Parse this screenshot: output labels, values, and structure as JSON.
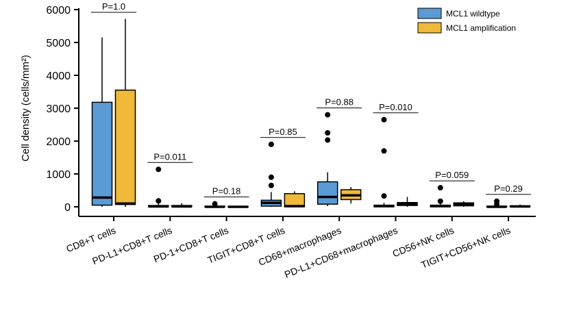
{
  "chart_data": {
    "type": "box",
    "ylabel": "Cell density (cells/mm²)",
    "ylim": [
      0,
      6000
    ],
    "yticks": [
      0,
      1000,
      2000,
      3000,
      4000,
      5000,
      6000
    ],
    "legend": {
      "placement": "top-right",
      "entries": [
        {
          "name": "MCL1 wildtype",
          "color": "#5b9bd5"
        },
        {
          "name": "MCL1 amplification",
          "color": "#f0b93a"
        }
      ]
    },
    "categories": [
      "CD8+T cells",
      "PD-L1+CD8+T cells",
      "PD-1+CD8+T cells",
      "TIGIT+CD8+T cells",
      "CD68+macrophages",
      "PD-L1+CD68+macrophages",
      "CD56+NK cells",
      "TIGIT+CD56+NK cells"
    ],
    "p_values": [
      "P=1.0",
      "P=0.011",
      "P=0.18",
      "P=0.85",
      "P=0.88",
      "P=0.010",
      "P=0.059",
      "P=0.29"
    ],
    "series": [
      {
        "name": "MCL1 wildtype",
        "color": "#5b9bd5",
        "boxes": [
          {
            "min": 0,
            "q1": 50,
            "median": 280,
            "q3": 3180,
            "max": 5150,
            "outliers": []
          },
          {
            "min": 0,
            "q1": 0,
            "median": 10,
            "q3": 40,
            "max": 100,
            "outliers": [
              1140,
              180
            ]
          },
          {
            "min": 0,
            "q1": 0,
            "median": 0,
            "q3": 20,
            "max": 60,
            "outliers": [
              90
            ]
          },
          {
            "min": 0,
            "q1": 20,
            "median": 120,
            "q3": 200,
            "max": 450,
            "outliers": [
              1900,
              900,
              650
            ]
          },
          {
            "min": 20,
            "q1": 80,
            "median": 300,
            "q3": 760,
            "max": 1050,
            "outliers": [
              2800,
              2250,
              2030
            ]
          },
          {
            "min": 0,
            "q1": 0,
            "median": 20,
            "q3": 50,
            "max": 120,
            "outliers": [
              2650,
              1700,
              330
            ]
          },
          {
            "min": 0,
            "q1": 0,
            "median": 20,
            "q3": 50,
            "max": 110,
            "outliers": [
              580,
              170
            ]
          },
          {
            "min": 0,
            "q1": 0,
            "median": 0,
            "q3": 20,
            "max": 50,
            "outliers": [
              170,
              80
            ]
          }
        ]
      },
      {
        "name": "MCL1 amplification",
        "color": "#f0b93a",
        "boxes": [
          {
            "min": 0,
            "q1": 70,
            "median": 100,
            "q3": 3550,
            "max": 5720,
            "outliers": []
          },
          {
            "min": 0,
            "q1": 0,
            "median": 10,
            "q3": 40,
            "max": 110,
            "outliers": []
          },
          {
            "min": 0,
            "q1": 0,
            "median": 0,
            "q3": 10,
            "max": 20,
            "outliers": []
          },
          {
            "min": 0,
            "q1": 0,
            "median": 20,
            "q3": 400,
            "max": 470,
            "outliers": []
          },
          {
            "min": 100,
            "q1": 220,
            "median": 350,
            "q3": 520,
            "max": 600,
            "outliers": []
          },
          {
            "min": 0,
            "q1": 40,
            "median": 80,
            "q3": 130,
            "max": 300,
            "outliers": []
          },
          {
            "min": 0,
            "q1": 30,
            "median": 80,
            "q3": 120,
            "max": 170,
            "outliers": []
          },
          {
            "min": 0,
            "q1": 0,
            "median": 10,
            "q3": 30,
            "max": 70,
            "outliers": []
          }
        ]
      }
    ]
  }
}
